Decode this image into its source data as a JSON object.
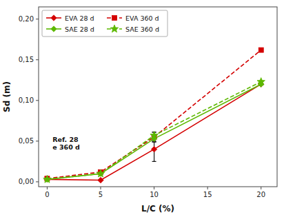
{
  "chart_data": {
    "type": "line",
    "xlabel": "L/C (%)",
    "ylabel": "Sd (m)",
    "x": [
      0,
      5,
      10,
      20
    ],
    "series": [
      {
        "name": "EVA 28 d",
        "color": "#d40000",
        "marker": "diamond",
        "line_style": "solid",
        "values": [
          0.003,
          0.002,
          0.04,
          0.12
        ],
        "error_lo": [
          0,
          0,
          0.015,
          0
        ],
        "error_hi": [
          0,
          0,
          0.01,
          0
        ]
      },
      {
        "name": "EVA 360 d",
        "color": "#d40000",
        "marker": "square",
        "line_style": "dashed",
        "values": [
          0.004,
          0.012,
          0.055,
          0.162
        ],
        "error_lo": [
          0,
          0,
          0.006,
          0
        ],
        "error_hi": [
          0,
          0,
          0.006,
          0
        ]
      },
      {
        "name": "SAE 28 d",
        "color": "#5cb800",
        "marker": "diamond",
        "line_style": "solid",
        "values": [
          0.003,
          0.01,
          0.053,
          0.12
        ],
        "error_lo": [
          0,
          0,
          0.004,
          0
        ],
        "error_hi": [
          0,
          0,
          0.004,
          0
        ]
      },
      {
        "name": "SAE 360 d",
        "color": "#5cb800",
        "marker": "star",
        "line_style": "dashed",
        "values": [
          0.003,
          0.01,
          0.057,
          0.123
        ],
        "error_lo": [
          0,
          0,
          0.004,
          0
        ],
        "error_hi": [
          0,
          0,
          0.004,
          0
        ]
      }
    ],
    "xlim": [
      -0.8,
      21.5
    ],
    "ylim": [
      -0.006,
      0.215
    ],
    "xticks": [
      0,
      5,
      10,
      15,
      20
    ],
    "yticks": [
      {
        "value": 0.0,
        "label": "0,00"
      },
      {
        "value": 0.05,
        "label": "0,05"
      },
      {
        "value": 0.1,
        "label": "0,10"
      },
      {
        "value": 0.15,
        "label": "0,15"
      },
      {
        "value": 0.2,
        "label": "0,20"
      }
    ],
    "annotation": {
      "text": "Ref. 28\ne 360 d",
      "x": 0.5,
      "y": 0.047
    },
    "legend": "upper left",
    "grid": false
  }
}
